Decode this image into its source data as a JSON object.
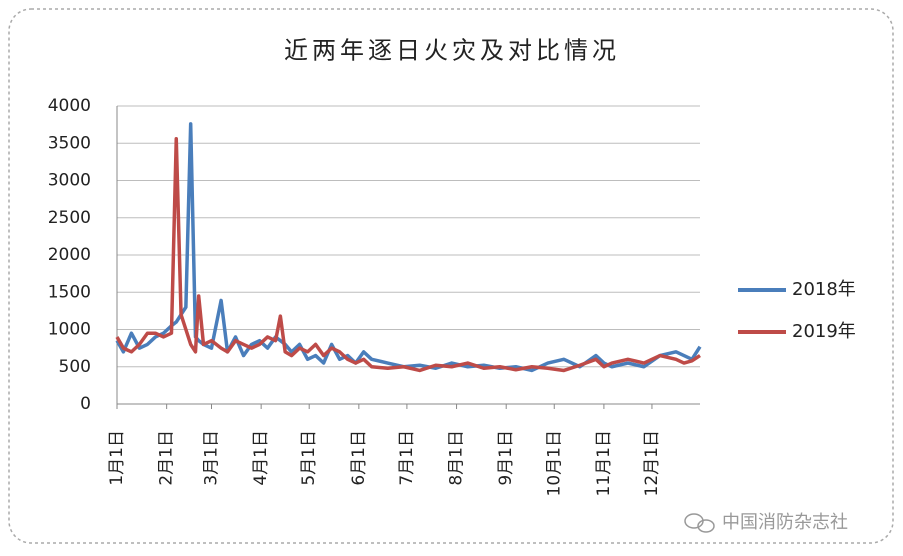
{
  "chart_data": {
    "type": "line",
    "title": "近两年逐日火灾及对比情况",
    "x": [
      1,
      5,
      10,
      15,
      20,
      25,
      30,
      35,
      38,
      41,
      44,
      47,
      50,
      52,
      55,
      60,
      66,
      70,
      75,
      80,
      85,
      90,
      95,
      100,
      103,
      106,
      110,
      115,
      120,
      125,
      130,
      135,
      140,
      145,
      150,
      155,
      160,
      170,
      180,
      190,
      200,
      210,
      220,
      230,
      240,
      250,
      260,
      270,
      280,
      290,
      300,
      305,
      310,
      320,
      330,
      340,
      350,
      355,
      360,
      365
    ],
    "xlim": [
      1,
      365
    ],
    "xticks": [
      {
        "value": 1,
        "label": "1月1日"
      },
      {
        "value": 32,
        "label": "2月1日"
      },
      {
        "value": 60,
        "label": "3月1日"
      },
      {
        "value": 91,
        "label": "4月1日"
      },
      {
        "value": 121,
        "label": "5月1日"
      },
      {
        "value": 152,
        "label": "6月1日"
      },
      {
        "value": 182,
        "label": "7月1日"
      },
      {
        "value": 213,
        "label": "8月1日"
      },
      {
        "value": 244,
        "label": "9月1日"
      },
      {
        "value": 274,
        "label": "10月1日"
      },
      {
        "value": 305,
        "label": "11月1日"
      },
      {
        "value": 335,
        "label": "12月1日"
      }
    ],
    "ylim": [
      0,
      4000
    ],
    "yticks": [
      0,
      500,
      1000,
      1500,
      2000,
      2500,
      3000,
      3500,
      4000
    ],
    "grid": true,
    "legend": "right",
    "series": [
      {
        "name": "2018年",
        "color": "#4a7ebb",
        "values": [
          850,
          700,
          950,
          750,
          800,
          900,
          950,
          1050,
          1100,
          1200,
          1300,
          3760,
          900,
          850,
          800,
          750,
          1390,
          700,
          900,
          650,
          800,
          850,
          750,
          900,
          850,
          800,
          700,
          800,
          600,
          650,
          550,
          800,
          600,
          650,
          550,
          700,
          600,
          550,
          500,
          520,
          480,
          550,
          500,
          520,
          480,
          500,
          450,
          550,
          600,
          500,
          650,
          550,
          500,
          550,
          500,
          650,
          700,
          650,
          600,
          770
        ]
      },
      {
        "name": "2019年",
        "color": "#be4b48",
        "values": [
          900,
          750,
          700,
          800,
          950,
          950,
          900,
          950,
          3560,
          1200,
          1000,
          800,
          700,
          1450,
          800,
          850,
          750,
          700,
          850,
          800,
          750,
          800,
          900,
          850,
          1180,
          700,
          650,
          750,
          700,
          800,
          650,
          750,
          700,
          600,
          550,
          600,
          500,
          480,
          500,
          450,
          520,
          500,
          550,
          480,
          500,
          460,
          500,
          480,
          450,
          520,
          600,
          500,
          550,
          600,
          550,
          650,
          600,
          550,
          580,
          650
        ]
      }
    ],
    "watermark": "中国消防杂志社"
  }
}
